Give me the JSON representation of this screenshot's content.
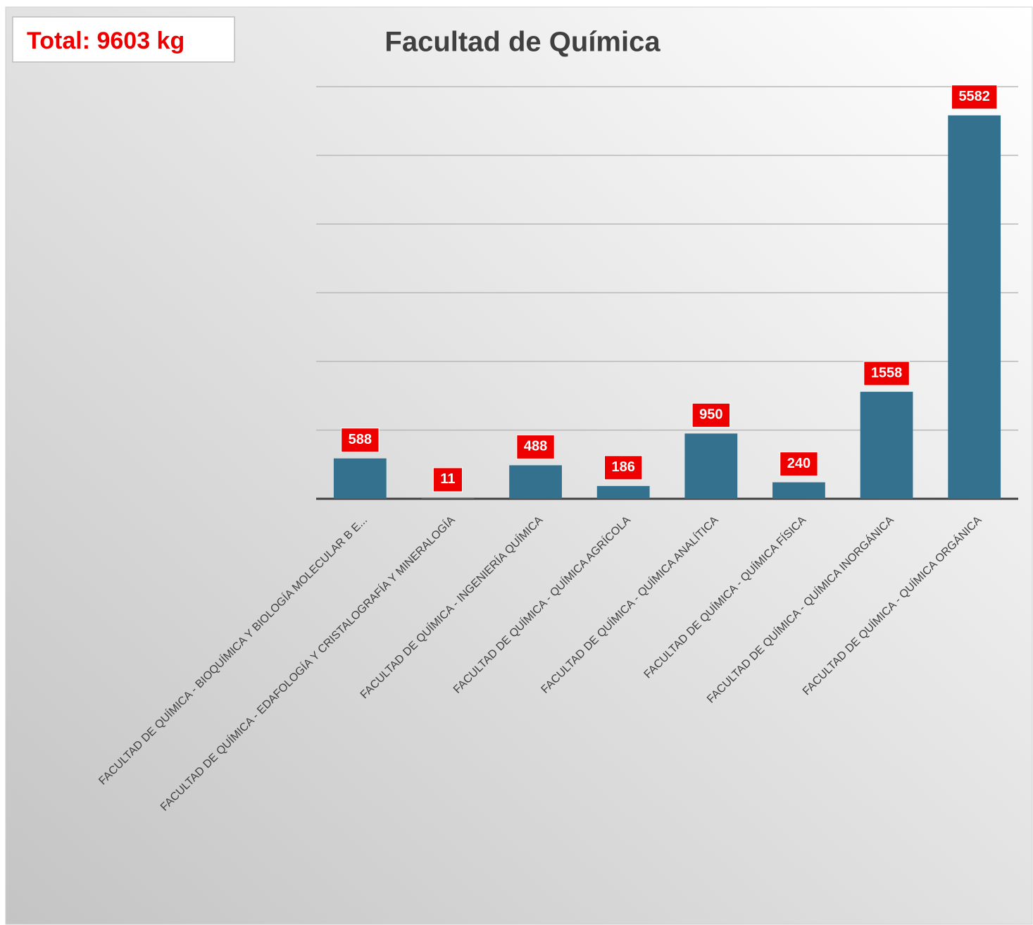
{
  "chart_data": {
    "type": "bar",
    "title": "Facultad de Química",
    "annotation": "Total: 9603 kg",
    "categories": [
      "FACULTAD DE QUÍMICA - BIOQUÍMICA Y BIOLOGÍA MOLECULAR B E...",
      "FACULTAD DE QUÍMICA - EDAFOLOGÍA Y CRISTALOGRAFÍA Y MINERALOGÍA",
      "FACULTAD DE QUÍMICA - INGENIERÍA QUÍMICA",
      "FACULTAD DE QUÍMICA - QUÍMICA AGRÍCOLA",
      "FACULTAD DE QUÍMICA - QUÍMICA ANALÍTICA",
      "FACULTAD DE QUÍMICA - QUÍMICA FÍSICA",
      "FACULTAD DE QUÍMICA - QUÍMICA INORGÁNICA",
      "FACULTAD DE QUÍMICA - QUÍMICA ORGÁNICA"
    ],
    "values": [
      588,
      11,
      488,
      186,
      950,
      240,
      1558,
      5582
    ],
    "color": "#33718f",
    "ylim": [
      0,
      6000
    ],
    "yticks": [
      0,
      1000,
      2000,
      3000,
      4000,
      5000,
      6000
    ],
    "grid": true
  }
}
